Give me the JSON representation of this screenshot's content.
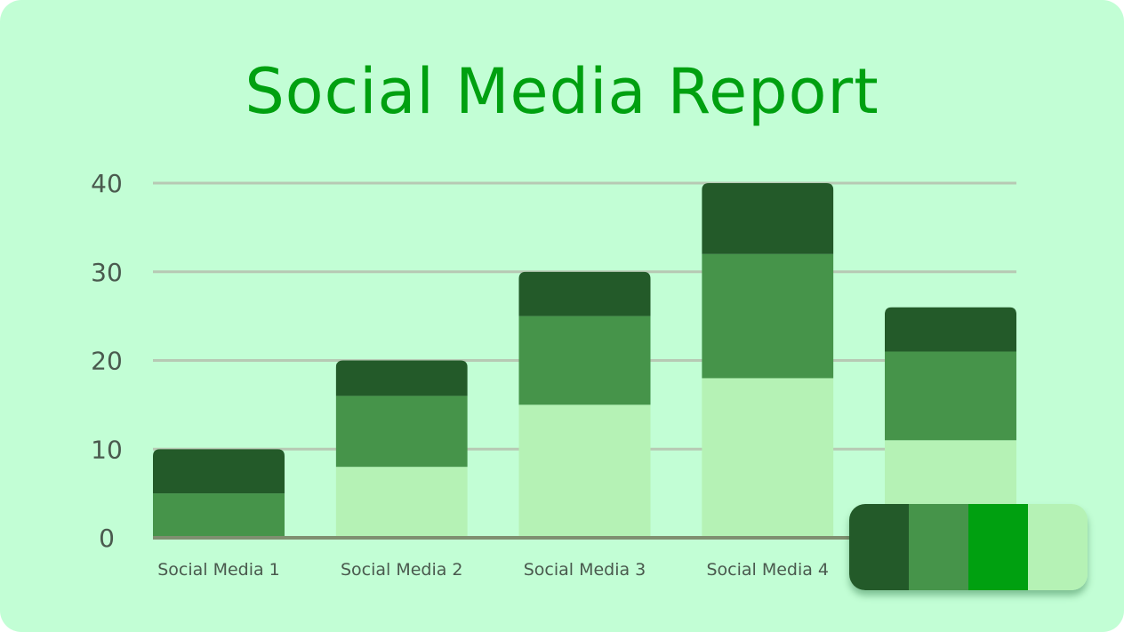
{
  "chart_data": {
    "type": "bar",
    "stacked": true,
    "title": "Social Media Report",
    "xlabel": "",
    "ylabel": "",
    "categories": [
      "Social Media 1",
      "Social Media 2",
      "Social Media 3",
      "Social Media 4",
      ""
    ],
    "series": [
      {
        "color": "#b5f2b5",
        "values": [
          0,
          8,
          15,
          18,
          11
        ]
      },
      {
        "color": "#46944a",
        "values": [
          5,
          8,
          10,
          14,
          10
        ]
      },
      {
        "color": "#235a29",
        "values": [
          5,
          4,
          5,
          8,
          5
        ]
      }
    ],
    "ylim": [
      0,
      40
    ],
    "yticks": [
      "0",
      "10",
      "20",
      "30",
      "40"
    ],
    "grid": true,
    "legend": {
      "placement": "bottom-right",
      "swatches": [
        "#235a29",
        "#46944a",
        "#00a010",
        "#b5f2b5"
      ]
    }
  },
  "colors": {
    "background": "#c2fed5",
    "title": "#00a010",
    "grid": "#b7c9b4",
    "axis": "#7f8f70",
    "text": "#4a5a4e"
  }
}
